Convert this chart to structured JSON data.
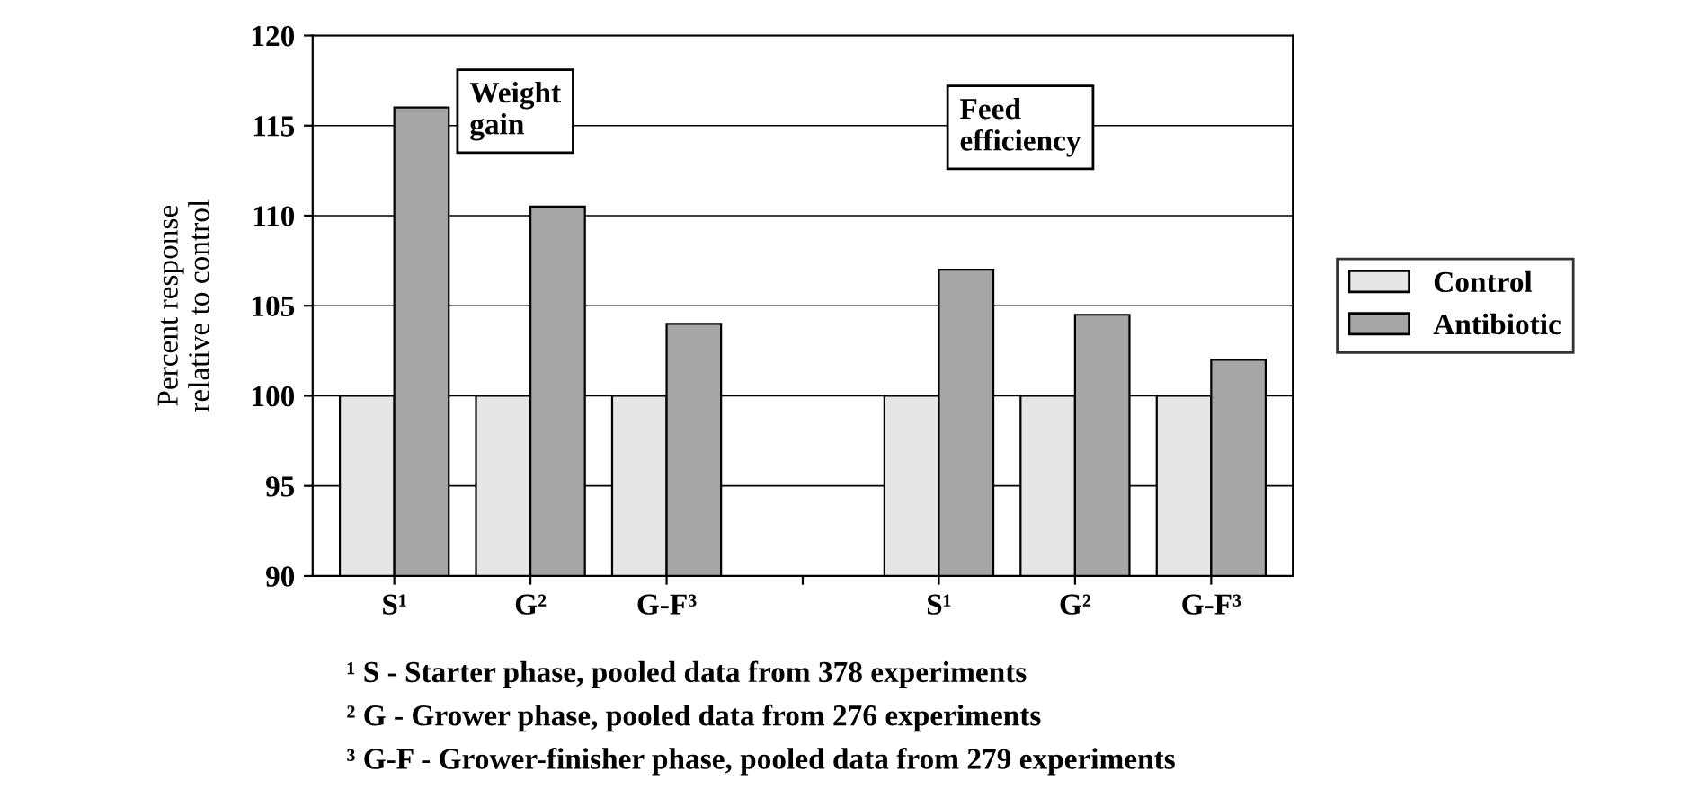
{
  "chart_data": {
    "type": "bar",
    "ylabel": "Percent response\nrelative to control",
    "categories": [
      "S¹",
      "G²",
      "G-F³",
      null,
      "S¹",
      "G²",
      "G-F³"
    ],
    "series": [
      {
        "name": "Control",
        "color": "#e6e6e6",
        "values": [
          100,
          100,
          100,
          null,
          100,
          100,
          100
        ]
      },
      {
        "name": "Antibiotic",
        "color": "#a6a6a6",
        "values": [
          116,
          110.5,
          104,
          null,
          107,
          104.5,
          102
        ]
      }
    ],
    "ylim": [
      90,
      120
    ],
    "yticks": [
      90,
      95,
      100,
      105,
      110,
      115,
      120
    ],
    "grid": "y",
    "legend": "right",
    "annotations": [
      "Weight\ngain",
      "Feed\nefficiency",
      "¹ S - Starter phase, pooled data from 378 experiments",
      "² G - Grower phase, pooled data from 276 experiments",
      "³ G-F - Grower-finisher phase, pooled data from 279 experiments"
    ]
  }
}
